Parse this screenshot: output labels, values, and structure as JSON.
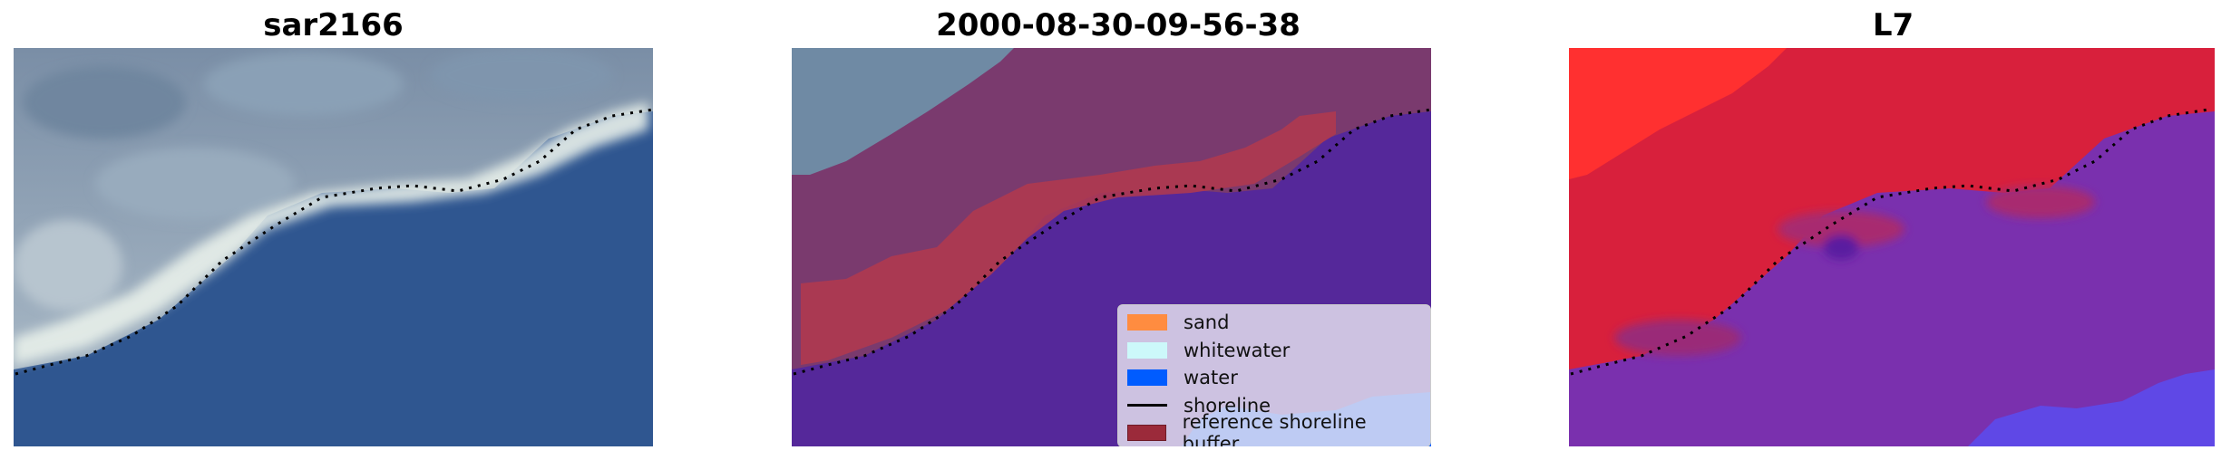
{
  "panels": [
    {
      "title": "sar2166"
    },
    {
      "title": "2000-08-30-09-56-38"
    },
    {
      "title": "L7"
    }
  ],
  "legend": {
    "items": [
      {
        "label": "sand",
        "color": "#ff8c40"
      },
      {
        "label": "whitewater",
        "color": "#ccf8fa"
      },
      {
        "label": "water",
        "color": "#005cff"
      },
      {
        "label": "shoreline",
        "color": "#000000"
      },
      {
        "label": "reference shoreline buffer",
        "color": "#9b2a3a"
      }
    ]
  },
  "colors": {
    "ocean_rgb": "#2f5690",
    "land_rgb": "#7d93aa",
    "whitewater_rgb": "#e8f0ea",
    "classified_land": "#7a3a6e",
    "classified_water": "#55289a",
    "buffer": "#b3394d",
    "land_prob": "#d8203c",
    "high_prob": "#ff3030",
    "water_prob": "#7a30ae"
  }
}
